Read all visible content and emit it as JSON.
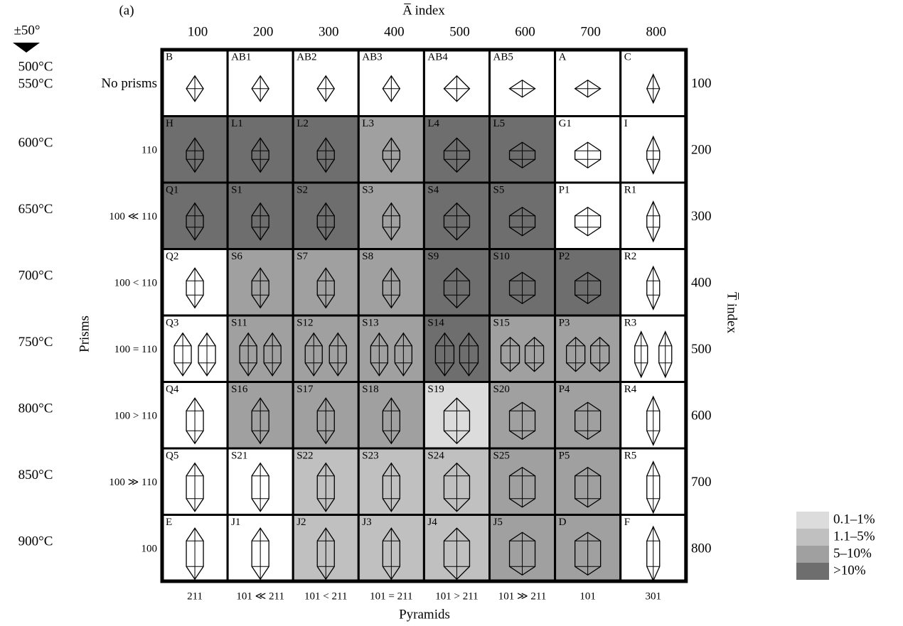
{
  "panel": "(a)",
  "top_title": "A̅ index",
  "right_title": "T̅ index",
  "left_title": "Prisms",
  "bottom_title": "Pyramids",
  "temperature_note": "±50°",
  "temperatures": [
    "500°C",
    "550°C",
    "600°C",
    "650°C",
    "700°C",
    "750°C",
    "800°C",
    "850°C",
    "900°C"
  ],
  "columns": [
    "100",
    "200",
    "300",
    "400",
    "500",
    "600",
    "700",
    "800"
  ],
  "rows": [
    "No prisms",
    "110",
    "100 ≪ 110",
    "100 < 110",
    "100 = 110",
    "100 > 110",
    "100 ≫ 110",
    "100"
  ],
  "right_labels": [
    "100",
    "200",
    "300",
    "400",
    "500",
    "600",
    "700",
    "800"
  ],
  "bottom_labels": [
    "211",
    "101 ≪ 211",
    "101 < 211",
    "101 = 211",
    "101 > 211",
    "101 ≫ 211",
    "101",
    "301"
  ],
  "cells": [
    [
      {
        "label": "B",
        "level": null
      },
      {
        "label": "AB1",
        "level": null
      },
      {
        "label": "AB2",
        "level": null
      },
      {
        "label": "AB3",
        "level": null
      },
      {
        "label": "AB4",
        "level": null
      },
      {
        "label": "AB5",
        "level": null
      },
      {
        "label": "A",
        "level": null
      },
      {
        "label": "C",
        "level": null
      }
    ],
    [
      {
        "label": "H",
        "level": 3
      },
      {
        "label": "L1",
        "level": 3
      },
      {
        "label": "L2",
        "level": 3
      },
      {
        "label": "L3",
        "level": 2
      },
      {
        "label": "L4",
        "level": 3
      },
      {
        "label": "L5",
        "level": 3
      },
      {
        "label": "G1",
        "level": null
      },
      {
        "label": "I",
        "level": null
      }
    ],
    [
      {
        "label": "Q1",
        "level": 3
      },
      {
        "label": "S1",
        "level": 3
      },
      {
        "label": "S2",
        "level": 3
      },
      {
        "label": "S3",
        "level": 2
      },
      {
        "label": "S4",
        "level": 3
      },
      {
        "label": "S5",
        "level": 3
      },
      {
        "label": "P1",
        "level": null
      },
      {
        "label": "R1",
        "level": null
      }
    ],
    [
      {
        "label": "Q2",
        "level": null
      },
      {
        "label": "S6",
        "level": 2
      },
      {
        "label": "S7",
        "level": 2
      },
      {
        "label": "S8",
        "level": 2
      },
      {
        "label": "S9",
        "level": 3
      },
      {
        "label": "S10",
        "level": 3
      },
      {
        "label": "P2",
        "level": 3
      },
      {
        "label": "R2",
        "level": null
      }
    ],
    [
      {
        "label": "Q3",
        "level": null
      },
      {
        "label": "S11",
        "level": 2
      },
      {
        "label": "S12",
        "level": 2
      },
      {
        "label": "S13",
        "level": 2
      },
      {
        "label": "S14",
        "level": 3
      },
      {
        "label": "S15",
        "level": 2
      },
      {
        "label": "P3",
        "level": 2
      },
      {
        "label": "R3",
        "level": null
      }
    ],
    [
      {
        "label": "Q4",
        "level": null
      },
      {
        "label": "S16",
        "level": 2
      },
      {
        "label": "S17",
        "level": 2
      },
      {
        "label": "S18",
        "level": 2
      },
      {
        "label": "S19",
        "level": 0
      },
      {
        "label": "S20",
        "level": 2
      },
      {
        "label": "P4",
        "level": 2
      },
      {
        "label": "R4",
        "level": null
      }
    ],
    [
      {
        "label": "Q5",
        "level": null
      },
      {
        "label": "S21",
        "level": null
      },
      {
        "label": "S22",
        "level": 1
      },
      {
        "label": "S23",
        "level": 1
      },
      {
        "label": "S24",
        "level": 1
      },
      {
        "label": "S25",
        "level": 2
      },
      {
        "label": "P5",
        "level": 2
      },
      {
        "label": "R5",
        "level": null
      }
    ],
    [
      {
        "label": "E",
        "level": null
      },
      {
        "label": "J1",
        "level": null
      },
      {
        "label": "J2",
        "level": 1
      },
      {
        "label": "J3",
        "level": 1
      },
      {
        "label": "J4",
        "level": 1
      },
      {
        "label": "J5",
        "level": 2
      },
      {
        "label": "D",
        "level": 2
      },
      {
        "label": "F",
        "level": null
      }
    ]
  ],
  "legend": [
    {
      "label": "0.1–1%",
      "color": "#dcdcdc"
    },
    {
      "label": "1.1–5%",
      "color": "#c0c0c0"
    },
    {
      "label": "5–10%",
      "color": "#a0a0a0"
    },
    {
      "label": ">10%",
      "color": "#6e6e6e"
    }
  ]
}
